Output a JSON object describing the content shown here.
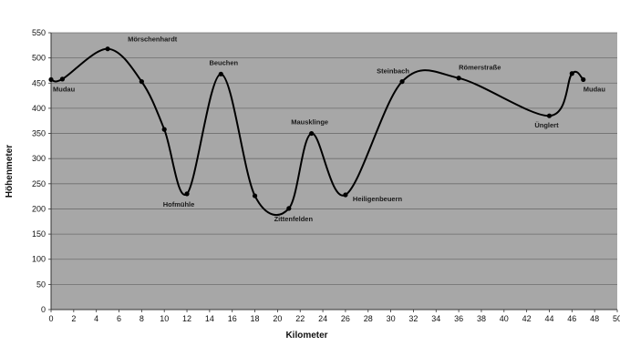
{
  "chart_data": {
    "type": "line",
    "xlabel": "Kilometer",
    "ylabel": "Höhenmeter",
    "xlim": [
      0,
      50
    ],
    "ylim": [
      0,
      550
    ],
    "xticks": [
      0,
      2,
      4,
      6,
      8,
      10,
      12,
      14,
      16,
      18,
      20,
      22,
      24,
      26,
      28,
      30,
      32,
      34,
      36,
      38,
      40,
      42,
      44,
      46,
      48,
      50
    ],
    "yticks": [
      0,
      50,
      100,
      150,
      200,
      250,
      300,
      350,
      400,
      450,
      500,
      550
    ],
    "grid": "horizontal",
    "legend": "none",
    "colors": {
      "plot_background": "#a7a7a7",
      "gridline": "#6e6e6e",
      "line": "#000000",
      "marker": "#000000"
    },
    "series": [
      {
        "x": [
          0,
          1,
          5,
          8,
          10,
          12,
          15,
          18,
          21,
          23,
          26,
          31,
          36,
          44,
          46,
          47
        ],
        "y": [
          457,
          458,
          518,
          453,
          358,
          230,
          468,
          226,
          201,
          350,
          228,
          453,
          460,
          385,
          469,
          457
        ]
      }
    ],
    "annotations": [
      {
        "text": "Mudau",
        "x": 0,
        "y": 457
      },
      {
        "text": "Mörschenhardt",
        "x": 5,
        "y": 518
      },
      {
        "text": "Hofmühle",
        "x": 12,
        "y": 230
      },
      {
        "text": "Beuchen",
        "x": 15,
        "y": 468
      },
      {
        "text": "Zittenfelden",
        "x": 21,
        "y": 201
      },
      {
        "text": "Mausklinge",
        "x": 23,
        "y": 350
      },
      {
        "text": "Heiligenbeuern",
        "x": 26,
        "y": 228
      },
      {
        "text": "Steinbach",
        "x": 31,
        "y": 453
      },
      {
        "text": "Römerstraße",
        "x": 36,
        "y": 460
      },
      {
        "text": "Ünglert",
        "x": 44,
        "y": 385
      },
      {
        "text": "Mudau",
        "x": 47,
        "y": 457
      }
    ]
  }
}
